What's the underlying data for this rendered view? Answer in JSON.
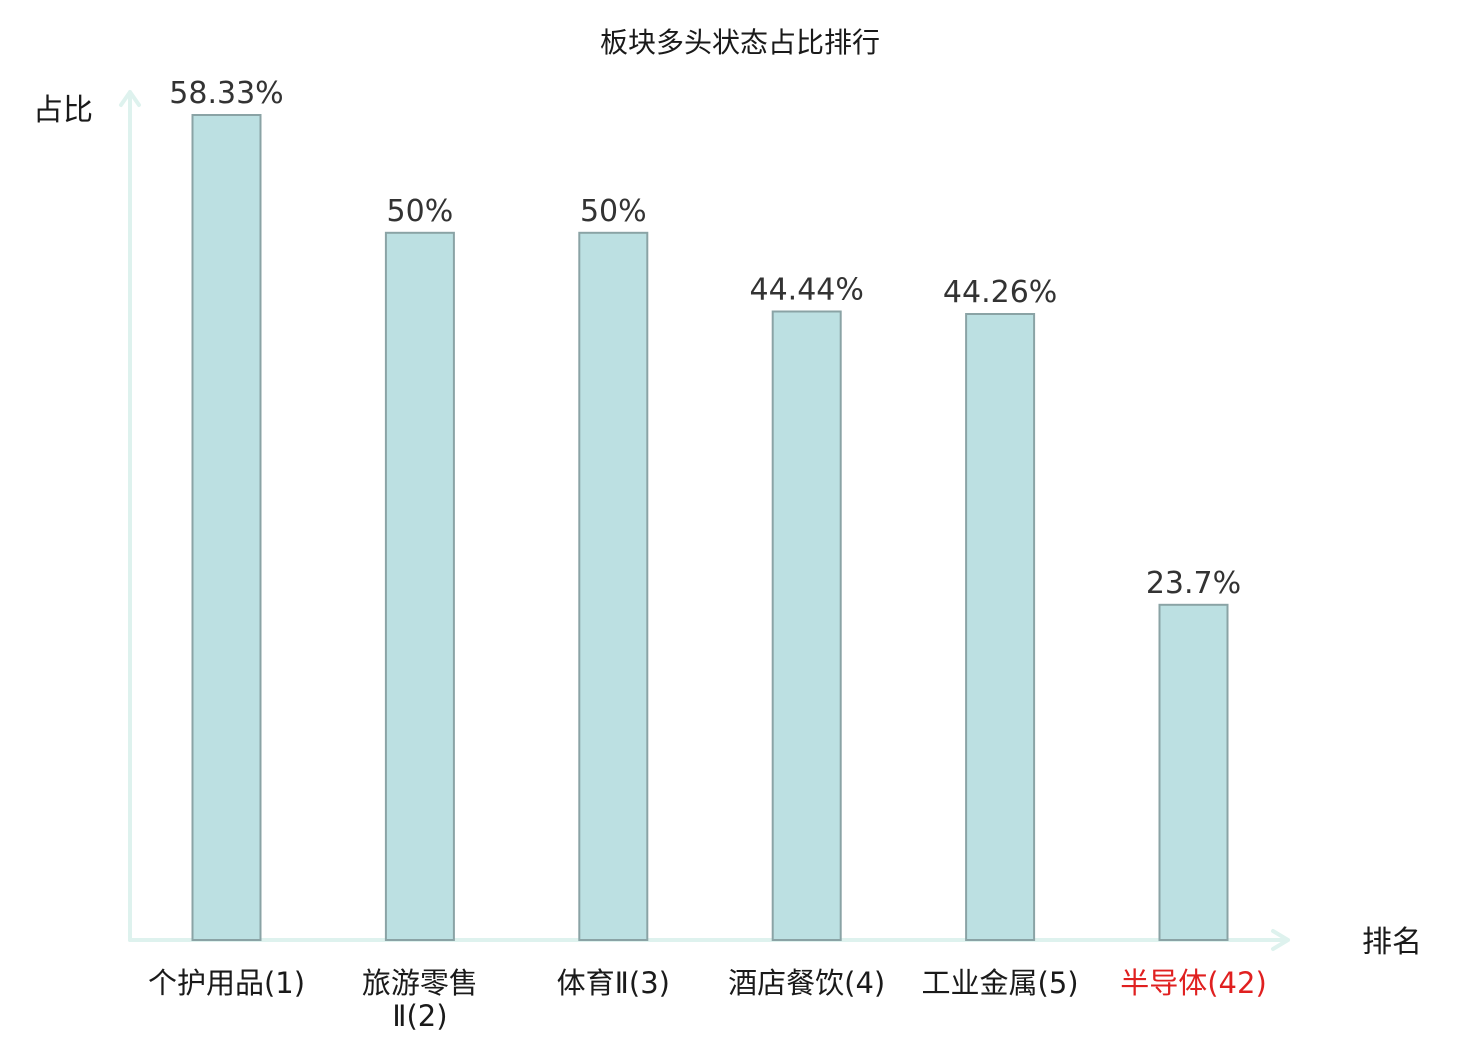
{
  "chart_data": {
    "type": "bar",
    "title": "板块多头状态占比排行",
    "xlabel": "排名",
    "ylabel": "占比",
    "categories": [
      {
        "name": "个护用品",
        "rank": "(1)",
        "highlight": false
      },
      {
        "name": "旅游零售",
        "name2": "Ⅱ(2)",
        "rank": "",
        "highlight": false
      },
      {
        "name": "体育Ⅱ",
        "rank": "(3)",
        "highlight": false
      },
      {
        "name": "酒店餐饮",
        "rank": "(4)",
        "highlight": false
      },
      {
        "name": "工业金属",
        "rank": "(5)",
        "highlight": false
      },
      {
        "name": "半导体",
        "rank": "(42)",
        "highlight": true
      }
    ],
    "values": [
      58.33,
      50,
      50,
      44.44,
      44.26,
      23.7
    ],
    "value_labels": [
      "58.33%",
      "50%",
      "50%",
      "44.44%",
      "44.26%",
      "23.7%"
    ],
    "ylim": [
      0,
      58.33
    ],
    "grid": false,
    "colors": {
      "bar_fill": "#bce0e2",
      "bar_stroke": "#8aa3a5",
      "axis": "#def2ee",
      "highlight_text": "#e02020"
    }
  }
}
